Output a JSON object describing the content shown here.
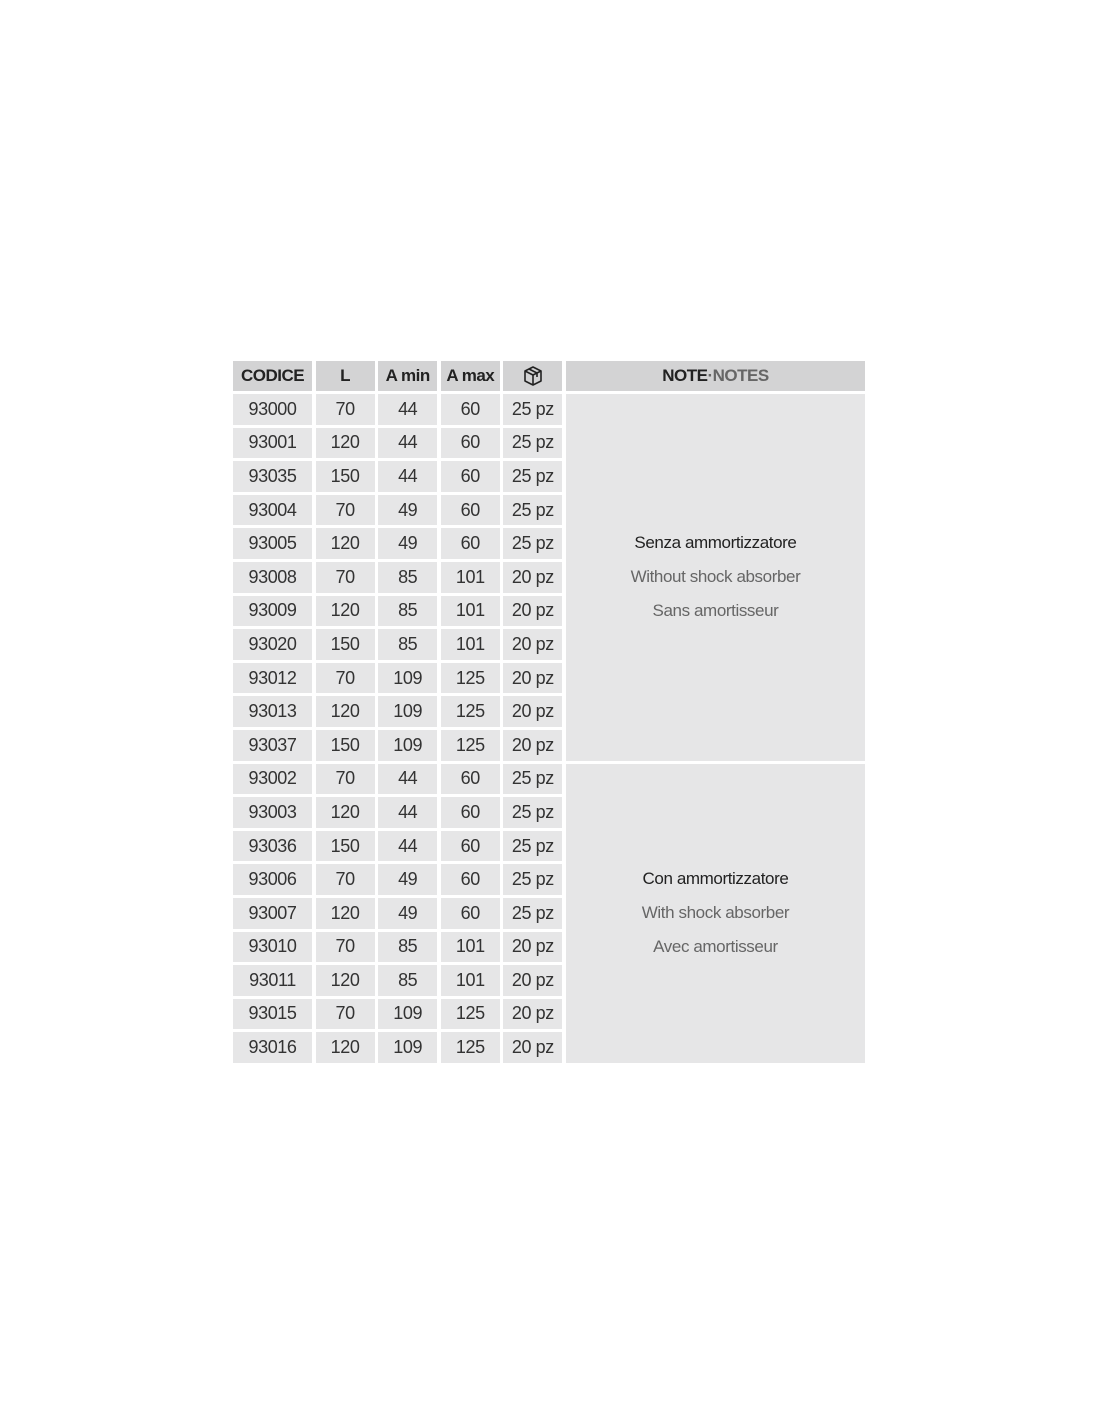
{
  "header": {
    "codice": "CODICE",
    "l": "L",
    "a_min": "A min",
    "a_max": "A max",
    "package_icon": "box-icon",
    "note": "NOTE",
    "separator": " · ",
    "notes": "NOTES"
  },
  "groups": [
    {
      "note_it": "Senza ammortizzatore",
      "note_en": "Without shock absorber",
      "note_fr": "Sans amortisseur",
      "rows": [
        [
          "93000",
          "70",
          "44",
          "60",
          "25 pz"
        ],
        [
          "93001",
          "120",
          "44",
          "60",
          "25 pz"
        ],
        [
          "93035",
          "150",
          "44",
          "60",
          "25 pz"
        ],
        [
          "93004",
          "70",
          "49",
          "60",
          "25 pz"
        ],
        [
          "93005",
          "120",
          "49",
          "60",
          "25 pz"
        ],
        [
          "93008",
          "70",
          "85",
          "101",
          "20 pz"
        ],
        [
          "93009",
          "120",
          "85",
          "101",
          "20 pz"
        ],
        [
          "93020",
          "150",
          "85",
          "101",
          "20 pz"
        ],
        [
          "93012",
          "70",
          "109",
          "125",
          "20 pz"
        ],
        [
          "93013",
          "120",
          "109",
          "125",
          "20 pz"
        ],
        [
          "93037",
          "150",
          "109",
          "125",
          "20 pz"
        ]
      ]
    },
    {
      "note_it": "Con ammortizzatore",
      "note_en": "With shock absorber",
      "note_fr": "Avec amortisseur",
      "rows": [
        [
          "93002",
          "70",
          "44",
          "60",
          "25 pz"
        ],
        [
          "93003",
          "120",
          "44",
          "60",
          "25 pz"
        ],
        [
          "93036",
          "150",
          "44",
          "60",
          "25 pz"
        ],
        [
          "93006",
          "70",
          "49",
          "60",
          "25 pz"
        ],
        [
          "93007",
          "120",
          "49",
          "60",
          "25 pz"
        ],
        [
          "93010",
          "70",
          "85",
          "101",
          "20 pz"
        ],
        [
          "93011",
          "120",
          "85",
          "101",
          "20 pz"
        ],
        [
          "93015",
          "70",
          "109",
          "125",
          "20 pz"
        ],
        [
          "93016",
          "120",
          "109",
          "125",
          "20 pz"
        ]
      ]
    }
  ]
}
